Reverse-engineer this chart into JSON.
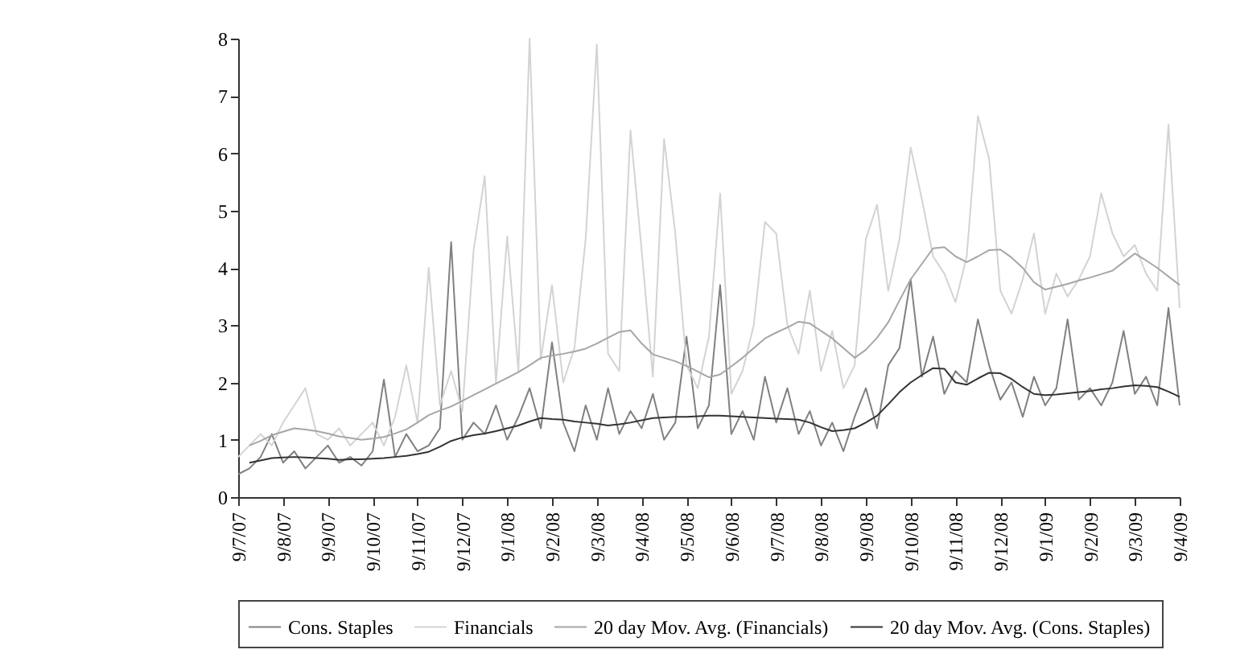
{
  "chart_data": {
    "type": "line",
    "ylim": [
      0,
      8
    ],
    "yticks": [
      0,
      1,
      2,
      3,
      4,
      5,
      6,
      7,
      8
    ],
    "categories": [
      "9/7/07",
      null,
      null,
      null,
      "9/8/07",
      null,
      null,
      null,
      "9/9/07",
      null,
      null,
      null,
      "9/10/07",
      null,
      null,
      null,
      "9/11/07",
      null,
      null,
      null,
      "9/12/07",
      null,
      null,
      null,
      "9/1/08",
      null,
      null,
      null,
      "9/2/08",
      null,
      null,
      null,
      "9/3/08",
      null,
      null,
      null,
      "9/4/08",
      null,
      null,
      null,
      "9/5/08",
      null,
      null,
      null,
      "9/6/08",
      null,
      null,
      null,
      "9/7/08",
      null,
      null,
      null,
      "9/8/08",
      null,
      null,
      null,
      "9/9/08",
      null,
      null,
      null,
      "9/10/08",
      null,
      null,
      null,
      "9/11/08",
      null,
      null,
      null,
      "9/12/08",
      null,
      null,
      null,
      "9/1/09",
      null,
      null,
      null,
      "9/2/09",
      null,
      null,
      null,
      "9/3/09",
      null,
      null,
      null,
      "9/4/09"
    ],
    "grid": false,
    "legend": "bottom",
    "line_style": "solid",
    "series": [
      {
        "name": "Cons. Staples",
        "color": "#808080",
        "values": [
          0.4,
          0.5,
          0.7,
          1.1,
          0.6,
          0.8,
          0.5,
          0.7,
          0.9,
          0.6,
          0.7,
          0.55,
          0.8,
          2.05,
          0.7,
          1.1,
          0.8,
          0.9,
          1.2,
          4.45,
          1.0,
          1.3,
          1.1,
          1.6,
          1.0,
          1.4,
          1.9,
          1.2,
          2.7,
          1.3,
          0.8,
          1.6,
          1.0,
          1.9,
          1.1,
          1.5,
          1.2,
          1.8,
          1.0,
          1.3,
          2.8,
          1.2,
          1.6,
          3.7,
          1.1,
          1.5,
          1.0,
          2.1,
          1.3,
          1.9,
          1.1,
          1.5,
          0.9,
          1.3,
          0.8,
          1.4,
          1.9,
          1.2,
          2.3,
          2.6,
          3.8,
          2.1,
          2.8,
          1.8,
          2.2,
          2.0,
          3.1,
          2.3,
          1.7,
          2.0,
          1.4,
          2.1,
          1.6,
          1.9,
          3.1,
          1.7,
          1.9,
          1.6,
          2.0,
          2.9,
          1.8,
          2.1,
          1.6,
          3.3,
          1.6
        ]
      },
      {
        "name": "Financials",
        "color": "#d3d3d3",
        "values": [
          0.7,
          0.9,
          1.1,
          0.9,
          1.3,
          1.6,
          1.9,
          1.1,
          1.0,
          1.2,
          0.9,
          1.1,
          1.3,
          0.9,
          1.4,
          2.3,
          1.3,
          4.0,
          1.6,
          2.2,
          1.5,
          4.3,
          5.6,
          2.0,
          4.55,
          2.2,
          8.0,
          2.4,
          3.7,
          2.0,
          2.6,
          4.5,
          7.9,
          2.5,
          2.2,
          6.4,
          4.3,
          2.1,
          6.25,
          4.6,
          2.3,
          1.9,
          2.8,
          5.3,
          1.8,
          2.2,
          3.0,
          4.8,
          4.6,
          3.0,
          2.5,
          3.6,
          2.2,
          2.9,
          1.9,
          2.3,
          4.5,
          5.1,
          3.6,
          4.5,
          6.1,
          5.2,
          4.2,
          3.9,
          3.4,
          4.2,
          6.65,
          5.9,
          3.6,
          3.2,
          3.8,
          4.6,
          3.2,
          3.9,
          3.5,
          3.8,
          4.2,
          5.3,
          4.6,
          4.2,
          4.4,
          3.9,
          3.6,
          6.5,
          3.3
        ]
      },
      {
        "name": "20 day Mov. Avg. (Financials)",
        "color": "#a6a6a6",
        "values": [
          null,
          0.9,
          0.98,
          1.08,
          1.14,
          1.2,
          1.18,
          1.15,
          1.11,
          1.06,
          1.03,
          1.0,
          1.02,
          1.05,
          1.11,
          1.18,
          1.3,
          1.43,
          1.51,
          1.58,
          1.68,
          1.78,
          1.88,
          1.98,
          2.08,
          2.18,
          2.3,
          2.43,
          2.47,
          2.5,
          2.54,
          2.59,
          2.68,
          2.78,
          2.88,
          2.91,
          2.68,
          2.49,
          2.43,
          2.37,
          2.29,
          2.19,
          2.09,
          2.14,
          2.28,
          2.43,
          2.6,
          2.77,
          2.87,
          2.96,
          3.06,
          3.03,
          2.9,
          2.77,
          2.6,
          2.43,
          2.57,
          2.78,
          3.05,
          3.43,
          3.8,
          4.07,
          4.34,
          4.36,
          4.2,
          4.1,
          4.2,
          4.31,
          4.32,
          4.18,
          4.0,
          3.75,
          3.62,
          3.67,
          3.72,
          3.78,
          3.83,
          3.89,
          3.95,
          4.1,
          4.25,
          4.13,
          4.0,
          3.85,
          3.7
        ]
      },
      {
        "name": "20 day Mov. Avg. (Cons. Staples)",
        "color": "#333333",
        "values": [
          null,
          0.6,
          0.64,
          0.68,
          0.69,
          0.7,
          0.69,
          0.68,
          0.67,
          0.65,
          0.66,
          0.66,
          0.67,
          0.68,
          0.7,
          0.72,
          0.75,
          0.79,
          0.88,
          0.98,
          1.04,
          1.08,
          1.11,
          1.15,
          1.2,
          1.25,
          1.32,
          1.38,
          1.36,
          1.35,
          1.32,
          1.3,
          1.28,
          1.25,
          1.27,
          1.3,
          1.34,
          1.38,
          1.39,
          1.4,
          1.4,
          1.41,
          1.42,
          1.42,
          1.41,
          1.4,
          1.39,
          1.38,
          1.37,
          1.36,
          1.35,
          1.3,
          1.22,
          1.15,
          1.17,
          1.2,
          1.3,
          1.42,
          1.62,
          1.83,
          2.0,
          2.13,
          2.25,
          2.24,
          2.0,
          1.96,
          2.07,
          2.17,
          2.16,
          2.06,
          1.92,
          1.8,
          1.78,
          1.79,
          1.81,
          1.83,
          1.85,
          1.88,
          1.9,
          1.93,
          1.95,
          1.94,
          1.92,
          1.84,
          1.75
        ]
      }
    ]
  }
}
